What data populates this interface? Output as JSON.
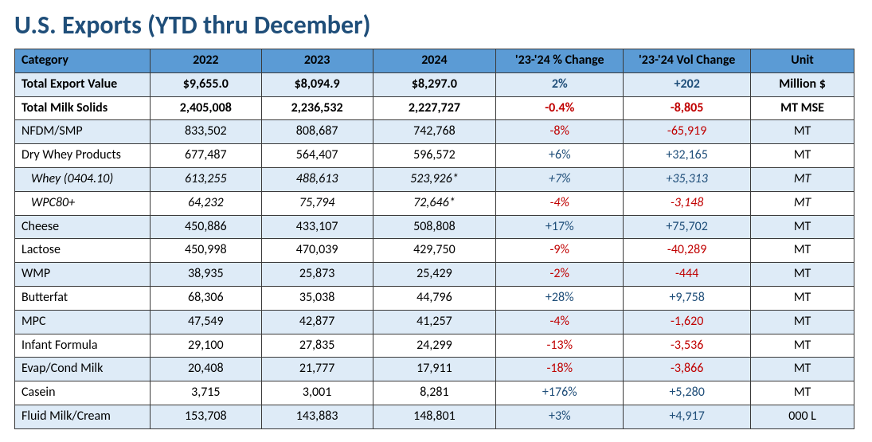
{
  "title": "U.S. Exports (YTD thru December)",
  "title_color": "#1f4e79",
  "colors": {
    "header_bg": "#5b9bd5",
    "alt_row_bg": "#deebf7",
    "row_bg": "#ffffff",
    "border": "#3a3a3a",
    "text": "#000000",
    "pos": "#1f4e79",
    "neg": "#c00000"
  },
  "columns": [
    "Category",
    "2022",
    "2023",
    "2024",
    "'23-'24 % Change",
    "'23-'24 Vol Change",
    "Unit"
  ],
  "rows": [
    {
      "cells": [
        "Total Export Value",
        "$9,655.0",
        "$8,094.9",
        "$8,297.0",
        "2%",
        "+202",
        "Million $"
      ],
      "bold": true,
      "pct_sign": "pos",
      "vol_sign": "pos"
    },
    {
      "cells": [
        "Total Milk Solids",
        "2,405,008",
        "2,236,532",
        "2,227,727",
        "-0.4%",
        "-8,805",
        "MT MSE"
      ],
      "bold": true,
      "pct_sign": "neg",
      "vol_sign": "neg"
    },
    {
      "cells": [
        "NFDM/SMP",
        "833,502",
        "808,687",
        "742,768",
        "-8%",
        "-65,919",
        "MT"
      ],
      "pct_sign": "neg",
      "vol_sign": "neg"
    },
    {
      "cells": [
        "Dry Whey Products",
        "677,487",
        "564,407",
        "596,572",
        "+6%",
        "+32,165",
        "MT"
      ],
      "pct_sign": "pos",
      "vol_sign": "pos"
    },
    {
      "cells": [
        "Whey (0404.10)",
        "613,255",
        "488,613",
        "523,926*",
        "+7%",
        "+35,313",
        "MT"
      ],
      "italic": true,
      "indent": true,
      "pct_sign": "pos",
      "vol_sign": "pos"
    },
    {
      "cells": [
        "WPC80+",
        "64,232",
        "75,794",
        "72,646*",
        "-4%",
        "-3,148",
        "MT"
      ],
      "italic": true,
      "indent": true,
      "pct_sign": "neg",
      "vol_sign": "neg"
    },
    {
      "cells": [
        "Cheese",
        "450,886",
        "433,107",
        "508,808",
        "+17%",
        "+75,702",
        "MT"
      ],
      "pct_sign": "pos",
      "vol_sign": "pos"
    },
    {
      "cells": [
        "Lactose",
        "450,998",
        "470,039",
        "429,750",
        "-9%",
        "-40,289",
        "MT"
      ],
      "pct_sign": "neg",
      "vol_sign": "neg"
    },
    {
      "cells": [
        "WMP",
        "38,935",
        "25,873",
        "25,429",
        "-2%",
        "-444",
        "MT"
      ],
      "pct_sign": "neg",
      "vol_sign": "neg"
    },
    {
      "cells": [
        "Butterfat",
        "68,306",
        "35,038",
        "44,796",
        "+28%",
        "+9,758",
        "MT"
      ],
      "pct_sign": "pos",
      "vol_sign": "pos"
    },
    {
      "cells": [
        "MPC",
        "47,549",
        "42,877",
        "41,257",
        "-4%",
        "-1,620",
        "MT"
      ],
      "pct_sign": "neg",
      "vol_sign": "neg"
    },
    {
      "cells": [
        "Infant Formula",
        "29,100",
        "27,835",
        "24,299",
        "-13%",
        "-3,536",
        "MT"
      ],
      "pct_sign": "neg",
      "vol_sign": "neg"
    },
    {
      "cells": [
        "Evap/Cond Milk",
        "20,408",
        "21,777",
        "17,911",
        "-18%",
        "-3,866",
        "MT"
      ],
      "pct_sign": "neg",
      "vol_sign": "neg"
    },
    {
      "cells": [
        "Casein",
        "3,715",
        "3,001",
        "8,281",
        "+176%",
        "+5,280",
        "MT"
      ],
      "pct_sign": "pos",
      "vol_sign": "pos"
    },
    {
      "cells": [
        "Fluid Milk/Cream",
        "153,708",
        "143,883",
        "148,801",
        "+3%",
        "+4,917",
        "000 L"
      ],
      "pct_sign": "pos",
      "vol_sign": "pos"
    }
  ]
}
